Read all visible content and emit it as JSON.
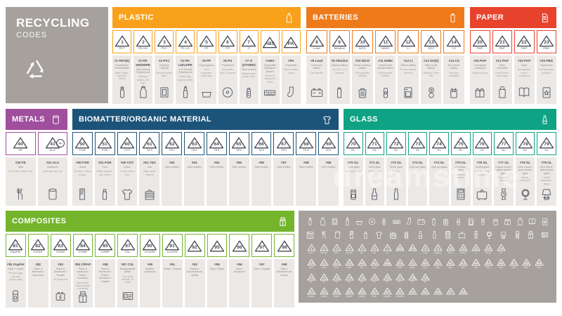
{
  "brand": {
    "title": "RECYCLING",
    "subtitle": "CODES"
  },
  "watermark": "dreamstime",
  "palette": {
    "panel_gray": "#A6A19C",
    "column_gray": "#EBE8E5",
    "symbol_ink": "#474C54"
  },
  "sections": {
    "plastic": {
      "title": "PLASTIC",
      "color": "#F9A11B",
      "icon": "bottle",
      "cols": [
        {
          "num": "1",
          "abbr": "PET",
          "code": "#1 PET(E)",
          "name": "Polyethylene Terephthalate",
          "use": "Water bottles, soft drink bottles",
          "icon": "water-bottle"
        },
        {
          "num": "2",
          "abbr": "PE-HD",
          "code": "#2 PE-HD/HDPE",
          "name": "High-Density Polyethylene",
          "use": "Detergent bottles, milk jugs",
          "icon": "jug"
        },
        {
          "num": "3",
          "abbr": "PVC",
          "code": "#3 PVC",
          "name": "Polyvinyl Chloride",
          "use": "Window frames, pipes",
          "icon": "window"
        },
        {
          "num": "4",
          "abbr": "PE-LD",
          "code": "#4 PE-LD/LDPE",
          "name": "Low-Density Polyethylene",
          "use": "Plastic bags, squeeze bottles",
          "icon": "spray"
        },
        {
          "num": "5",
          "abbr": "PP",
          "code": "#5 PP",
          "name": "Polypropylene",
          "use": "Food containers, bottle caps",
          "icon": "tub"
        },
        {
          "num": "6",
          "abbr": "PS",
          "code": "#6 PS",
          "name": "Polystyrene",
          "use": "Disposable cups, CD cases",
          "icon": "disc"
        },
        {
          "num": "7",
          "abbr": "O",
          "code": "#7 O (OTHER)",
          "name": "Other plastics",
          "use": "Polycarbonate, acrylic, nylon",
          "icon": "baby-bottle"
        },
        {
          "num": "ABS",
          "abbr": "",
          "code": "#ABS",
          "name": "Acrylonitrile Butadiene Styrene",
          "use": "Electronic equipment cases",
          "icon": "keyboard"
        },
        {
          "num": "PA",
          "abbr": "",
          "code": "#PA",
          "name": "Polyamide",
          "use": "Fibers, textiles, socks",
          "icon": "sock"
        }
      ]
    },
    "batteries": {
      "title": "BATTERIES",
      "color": "#EF7A1A",
      "icon": "battery",
      "cols": [
        {
          "num": "8",
          "abbr": "Lead",
          "code": "#8 Lead",
          "name": "Lead-acid battery",
          "use": "Car batteries",
          "icon": "car-battery"
        },
        {
          "num": "9",
          "abbr": "Alkaline",
          "code": "#9 Alkaline",
          "name": "Alkaline battery",
          "use": "AA, AAA, C, D batteries",
          "icon": "battery-aa"
        },
        {
          "num": "10",
          "abbr": "NiCD",
          "code": "#10 NiCD",
          "name": "Nickel-cadmium battery",
          "use": "Rechargeable batteries",
          "icon": "battery-bin"
        },
        {
          "num": "11",
          "abbr": "NiMH",
          "code": "#11 NiMH",
          "name": "Nickel-metal hydride battery",
          "use": "Rechargeable batteries",
          "icon": "battery-small"
        },
        {
          "num": "12",
          "abbr": "Li",
          "code": "#12 Li",
          "name": "Lithium battery",
          "use": "Phones, laptops, cameras",
          "icon": "battery-phone"
        },
        {
          "num": "13",
          "abbr": "SOZ",
          "code": "#13 SO(Z)",
          "name": "Silver-oxide battery",
          "use": "Watches, button cells",
          "icon": "coin-cells"
        },
        {
          "num": "14",
          "abbr": "CZ",
          "code": "#14 CZ",
          "name": "Zinc-carbon battery",
          "use": "Remotes, flashlights",
          "icon": "battery-9v"
        }
      ]
    },
    "paper": {
      "title": "PAPER",
      "color": "#E8432D",
      "icon": "doc",
      "cols": [
        {
          "num": "20",
          "abbr": "PAP",
          "code": "#20 PAP",
          "name": "Corrugated cardboard",
          "use": "Shipping boxes",
          "icon": "box"
        },
        {
          "num": "21",
          "abbr": "PAP",
          "code": "#21 PAP",
          "name": "Other cardboard",
          "use": "Cereal boxes, paper bags",
          "icon": "paper-bag"
        },
        {
          "num": "22",
          "abbr": "PAP",
          "code": "#22 PAP",
          "name": "Paper",
          "use": "Newspapers, books, magazines",
          "icon": "book"
        },
        {
          "num": "23",
          "abbr": "PBD",
          "code": "#23 PBD",
          "name": "Paperboard",
          "use": "Greeting cards, postcards",
          "icon": "card"
        }
      ]
    },
    "metals": {
      "title": "METALS",
      "color": "#A04E9E",
      "icon": "can",
      "cols": [
        {
          "num": "40",
          "abbr": "FE",
          "code": "#40 FE",
          "name": "Steel",
          "use": "Food cans, cutlery, tools",
          "icon": "cutlery"
        },
        {
          "num": "41",
          "abbr": "ALU",
          "code": "#41 ALU",
          "name": "Aluminium",
          "use": "Beverage cans, foil",
          "icon": "can",
          "extra": "alu"
        }
      ]
    },
    "biomatter": {
      "title": "BIOMATTER/ORGANIC MATERIAL",
      "color": "#1C5379",
      "icon": "tshirt",
      "cols": [
        {
          "num": "50",
          "abbr": "FOR",
          "code": "#50 FOR",
          "name": "Wood",
          "use": "Furniture, cutting boards",
          "icon": "plank"
        },
        {
          "num": "51",
          "abbr": "FOR",
          "code": "#51 FOR",
          "name": "Cork",
          "use": "Bottle stoppers, cork boards",
          "icon": "cork"
        },
        {
          "num": "60",
          "abbr": "COT",
          "code": "#60 COT",
          "name": "Cotton",
          "use": "T-shirts, cotton wool",
          "icon": "tshirt"
        },
        {
          "num": "61",
          "abbr": "TEX",
          "code": "#61 TEX",
          "name": "Jute",
          "use": "Bags, sacks, baskets",
          "icon": "basket"
        },
        {
          "num": "62",
          "abbr": "TEX",
          "code": "#62",
          "name": "Other textiles",
          "use": "",
          "icon": ""
        },
        {
          "num": "63",
          "abbr": "TEX",
          "code": "#63",
          "name": "Other textiles",
          "use": "",
          "icon": ""
        },
        {
          "num": "64",
          "abbr": "TEX",
          "code": "#64",
          "name": "Other textiles",
          "use": "",
          "icon": ""
        },
        {
          "num": "65",
          "abbr": "TEX",
          "code": "#65",
          "name": "Other textiles",
          "use": "",
          "icon": ""
        },
        {
          "num": "66",
          "abbr": "TEX",
          "code": "#66",
          "name": "Other textiles",
          "use": "",
          "icon": ""
        },
        {
          "num": "67",
          "abbr": "TEX",
          "code": "#67",
          "name": "Other textiles",
          "use": "",
          "icon": ""
        },
        {
          "num": "68",
          "abbr": "TEX",
          "code": "#68",
          "name": "Other textiles",
          "use": "",
          "icon": ""
        },
        {
          "num": "69",
          "abbr": "TEX",
          "code": "#69",
          "name": "Other textiles",
          "use": "",
          "icon": ""
        }
      ]
    },
    "glass": {
      "title": "GLASS",
      "color": "#0FA284",
      "icon": "wine-bottle",
      "cols": [
        {
          "num": "70",
          "abbr": "GL",
          "code": "#70 GL",
          "name": "Mixed glass",
          "use": "Jars, containers",
          "icon": "jar"
        },
        {
          "num": "71",
          "abbr": "GL",
          "code": "#71 GL",
          "name": "Clear glass",
          "use": "Bottles, jars",
          "icon": "wine-bottle"
        },
        {
          "num": "72",
          "abbr": "GL",
          "code": "#72 GL",
          "name": "Green glass",
          "use": "Bottles",
          "icon": "vial"
        },
        {
          "num": "73",
          "abbr": "GL",
          "code": "#73 GL",
          "name": "Dark sort glass",
          "use": "",
          "icon": ""
        },
        {
          "num": "74",
          "abbr": "GL",
          "code": "#74 GL",
          "name": "Light sort glass",
          "use": "",
          "icon": ""
        },
        {
          "num": "75",
          "abbr": "GL",
          "code": "#75 GL",
          "name": "Light leaded glass",
          "use": "Computer screens",
          "icon": "calculator"
        },
        {
          "num": "76",
          "abbr": "GL",
          "code": "#76 GL",
          "name": "Leaded glass",
          "use": "Old TV screens, glassware",
          "icon": "tv"
        },
        {
          "num": "77",
          "abbr": "GL",
          "code": "#77 GL",
          "name": "Copper mixed / copper backed glass",
          "use": "Clock faces, watches",
          "icon": "watch"
        },
        {
          "num": "78",
          "abbr": "GL",
          "code": "#78 GL",
          "name": "Silver mixed / silver backed glass",
          "use": "Mirrors, silverware",
          "icon": "mirror"
        },
        {
          "num": "79",
          "abbr": "GL",
          "code": "#79 GL",
          "name": "Gold mixed / gold backed glass",
          "use": "Gilded glassware, lamps",
          "icon": "lamp"
        }
      ]
    },
    "composites": {
      "title": "COMPOSITES",
      "color": "#74B52C",
      "icon": "carton",
      "cols": [
        {
          "num": "81",
          "abbr": "PapPet",
          "code": "#81 PapPet",
          "name": "Paper + plastic",
          "use": "Pet food bags, cold store grocery bags",
          "icon": "deodorant"
        },
        {
          "num": "82",
          "abbr": "C/PAP",
          "code": "#82",
          "name": "Paper & fibreboard / Aluminium",
          "use": "",
          "icon": ""
        },
        {
          "num": "83",
          "abbr": "C/PAP",
          "code": "#83",
          "name": "Paper & fibreboard / Tinplate",
          "use": "UK biscuit tins",
          "icon": "power-battery"
        },
        {
          "num": "84",
          "abbr": "C/PAP",
          "code": "#84 C/PAP",
          "name": "Paper & cardboard / Plastic / Aluminium",
          "use": "Juice boxes, liquid storage containers",
          "icon": "carton"
        },
        {
          "num": "85",
          "abbr": "C/PAP",
          "code": "#85",
          "name": "Paper & fibreboard / Plastic / Aluminium / Tinplate",
          "use": "",
          "icon": ""
        },
        {
          "num": "87",
          "abbr": "CSL",
          "code": "#87 CSL",
          "name": "Biodegradable plastic",
          "use": "Card stock laminate, ID cards",
          "icon": "id-card"
        },
        {
          "num": "90",
          "abbr": "C/LDPE",
          "code": "#90",
          "name": "Plastics / Aluminium",
          "use": "",
          "icon": ""
        },
        {
          "num": "91",
          "abbr": "C/LDPE",
          "code": "#91",
          "name": "Plastic / Tinplate",
          "use": "",
          "icon": ""
        },
        {
          "num": "92",
          "abbr": "",
          "code": "#92",
          "name": "Plastics / Miscellaneous metals",
          "use": "",
          "icon": ""
        },
        {
          "num": "95",
          "abbr": "",
          "code": "#95",
          "name": "Glass / Plastic",
          "use": "",
          "icon": ""
        },
        {
          "num": "96",
          "abbr": "",
          "code": "#96",
          "name": "Glass / Aluminium",
          "use": "",
          "icon": ""
        },
        {
          "num": "97",
          "abbr": "",
          "code": "#97",
          "name": "Glass / Tinplate",
          "use": "",
          "icon": ""
        },
        {
          "num": "98",
          "abbr": "",
          "code": "#98",
          "name": "Glass / Miscellaneous metals",
          "use": "",
          "icon": ""
        }
      ]
    }
  },
  "summary": {
    "icon_rows": [
      [
        "water-bottle",
        "jug",
        "window",
        "spray",
        "tub",
        "disc",
        "baby-bottle",
        "keyboard",
        "sock",
        "car-battery",
        "battery-aa",
        "battery-bin",
        "battery-small",
        "battery-phone",
        "coin-cells",
        "battery-9v",
        "box",
        "paper-bag",
        "book",
        "card"
      ],
      [
        "washer",
        "cutlery",
        "can",
        "plank",
        "cork",
        "tshirt",
        "basket",
        "jar",
        "wine-bottle",
        "vial",
        "calculator",
        "tv",
        "watch",
        "mirror",
        "lamp",
        "deodorant",
        "carton",
        "id-card"
      ]
    ],
    "symbol_rows": [
      [
        {
          "num": "1",
          "label": "PET"
        },
        {
          "num": "2",
          "label": "PE-HD"
        },
        {
          "num": "3",
          "label": "PVC"
        },
        {
          "num": "4",
          "label": "PE-LD"
        },
        {
          "num": "5",
          "label": "PP"
        },
        {
          "num": "6",
          "label": "PS"
        },
        {
          "num": "7",
          "label": "O"
        },
        {
          "num": "ABS",
          "label": ""
        },
        {
          "num": "PA",
          "label": ""
        },
        {
          "num": "8",
          "label": "Lead"
        },
        {
          "num": "9",
          "label": "Alkaline"
        },
        {
          "num": "10",
          "label": "NiCD"
        },
        {
          "num": "11",
          "label": "NiMH"
        },
        {
          "num": "12",
          "label": "Li"
        },
        {
          "num": "13",
          "label": "SO(Z)"
        },
        {
          "num": "14",
          "label": "CZ"
        }
      ],
      [
        {
          "num": "20",
          "label": "PAP"
        },
        {
          "num": "21",
          "label": "PAP"
        },
        {
          "num": "22",
          "label": "PAP"
        },
        {
          "num": "23",
          "label": "PBD"
        },
        {
          "num": "40",
          "label": "FE"
        },
        {
          "num": "41",
          "label": "ALU"
        },
        {
          "num": "alu",
          "label": ""
        },
        {
          "num": "50",
          "label": "FOR"
        },
        {
          "num": "51",
          "label": "FOR"
        },
        {
          "num": "60",
          "label": "COT"
        },
        {
          "num": "61",
          "label": "TEX"
        },
        {
          "num": "62",
          "label": "TEX"
        },
        {
          "num": "63",
          "label": "TEX"
        },
        {
          "num": "64",
          "label": "TEX"
        },
        {
          "num": "65",
          "label": "TEX"
        },
        {
          "num": "66",
          "label": "TEX"
        },
        {
          "num": "67",
          "label": "TEX"
        },
        {
          "num": "68",
          "label": "TEX"
        },
        {
          "num": "69",
          "label": "TEX"
        }
      ],
      [
        {
          "num": "70",
          "label": "GL"
        },
        {
          "num": "71",
          "label": "GL"
        },
        {
          "num": "72",
          "label": "GL"
        },
        {
          "num": "73",
          "label": "GL"
        },
        {
          "num": "74",
          "label": "GL"
        },
        {
          "num": "75",
          "label": "GL"
        },
        {
          "num": "76",
          "label": "GL"
        },
        {
          "num": "77",
          "label": "GL"
        },
        {
          "num": "78",
          "label": "GL"
        },
        {
          "num": "79",
          "label": "GL"
        }
      ],
      [
        {
          "num": "81",
          "label": "PapPet"
        },
        {
          "num": "82",
          "label": "C/PAP"
        },
        {
          "num": "83",
          "label": "C/PAP"
        },
        {
          "num": "84",
          "label": "C/PAP"
        },
        {
          "num": "85",
          "label": "C/PAP"
        },
        {
          "num": "87",
          "label": "CSL"
        },
        {
          "num": "90",
          "label": "C/LDPE"
        },
        {
          "num": "91",
          "label": "C/LDPE"
        },
        {
          "num": "92",
          "label": ""
        },
        {
          "num": "95",
          "label": ""
        },
        {
          "num": "96",
          "label": ""
        },
        {
          "num": "97",
          "label": ""
        },
        {
          "num": "98",
          "label": ""
        }
      ]
    ]
  }
}
